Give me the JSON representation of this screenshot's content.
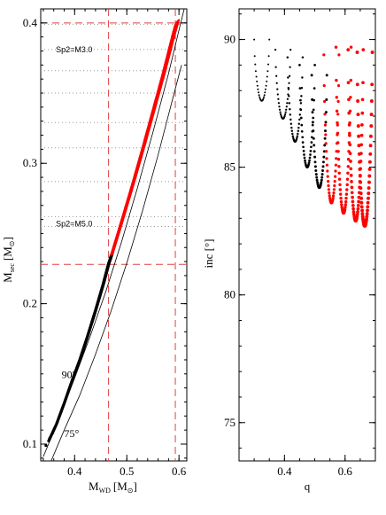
{
  "chart_data": [
    {
      "type": "scatter",
      "panel": "left",
      "xlim": [
        0.335,
        0.615
      ],
      "ylim": [
        0.088,
        0.41
      ],
      "x_ticks": [
        0.4,
        0.5,
        0.6
      ],
      "x_tick_labels": [
        "0.4",
        "0.5",
        "0.6"
      ],
      "y_ticks": [
        0.1,
        0.2,
        0.3,
        0.4
      ],
      "y_tick_labels": [
        "0.1",
        "0.2",
        "0.3",
        "0.4"
      ],
      "xlabel": {
        "main": "M",
        "sub": "WD",
        "unit": "[M",
        "sun": "⊙",
        "close": "]"
      },
      "ylabel": {
        "main": "M",
        "sub": "sec",
        "unit": "[M",
        "sun": "⊙",
        "close": "]"
      },
      "vlines_dashed": [
        0.465,
        0.593
      ],
      "hlines_dashed": [
        0.228,
        0.4
      ],
      "hlines_dotted": [
        0.399,
        0.381,
        0.366,
        0.35,
        0.329,
        0.311,
        0.287,
        0.262,
        0.255
      ],
      "annotations": [
        {
          "text": "Sp2=M3.0",
          "x": 0.364,
          "y": 0.381
        },
        {
          "text": "Sp2=M5.0",
          "x": 0.364,
          "y": 0.257
        },
        {
          "text": "90°",
          "x": 0.375,
          "y": 0.149
        },
        {
          "text": "75°",
          "x": 0.38,
          "y": 0.107
        }
      ],
      "series": [
        {
          "color": "#000000",
          "points": [
            [
              0.35,
              0.102
            ],
            [
              0.365,
              0.114
            ],
            [
              0.38,
              0.129
            ],
            [
              0.395,
              0.145
            ],
            [
              0.41,
              0.16
            ],
            [
              0.425,
              0.177
            ],
            [
              0.44,
              0.195
            ],
            [
              0.455,
              0.214
            ],
            [
              0.465,
              0.228
            ],
            [
              0.472,
              0.236
            ]
          ]
        },
        {
          "color": "#ff0000",
          "points": [
            [
              0.472,
              0.236
            ],
            [
              0.49,
              0.258
            ],
            [
              0.51,
              0.283
            ],
            [
              0.53,
              0.309
            ],
            [
              0.55,
              0.336
            ],
            [
              0.57,
              0.363
            ],
            [
              0.59,
              0.392
            ],
            [
              0.596,
              0.4
            ]
          ]
        }
      ],
      "curves": [
        {
          "name": "90°",
          "color": "#000000",
          "points": [
            [
              0.34,
              0.091
            ],
            [
              0.37,
              0.118
            ],
            [
              0.4,
              0.147
            ],
            [
              0.43,
              0.177
            ],
            [
              0.46,
              0.209
            ],
            [
              0.49,
              0.244
            ],
            [
              0.52,
              0.282
            ],
            [
              0.55,
              0.322
            ],
            [
              0.58,
              0.364
            ],
            [
              0.6,
              0.395
            ],
            [
              0.61,
              0.41
            ]
          ]
        },
        {
          "name": "75°",
          "color": "#000000",
          "points": [
            [
              0.355,
              0.088
            ],
            [
              0.38,
              0.11
            ],
            [
              0.41,
              0.135
            ],
            [
              0.44,
              0.164
            ],
            [
              0.47,
              0.195
            ],
            [
              0.5,
              0.229
            ],
            [
              0.53,
              0.266
            ],
            [
              0.56,
              0.306
            ],
            [
              0.59,
              0.349
            ],
            [
              0.605,
              0.37
            ]
          ]
        }
      ]
    },
    {
      "type": "scatter",
      "panel": "right",
      "xlim": [
        0.25,
        0.7
      ],
      "ylim": [
        73.5,
        91.2
      ],
      "x_ticks": [
        0.4,
        0.6
      ],
      "x_tick_labels": [
        "0.4",
        "0.6"
      ],
      "y_ticks": [
        75,
        80,
        85,
        90
      ],
      "y_tick_labels": [
        "75",
        "80",
        "85",
        "90"
      ],
      "xlabel": {
        "main": "q"
      },
      "ylabel": {
        "main": "inc [°]"
      },
      "arcs": [
        {
          "q_start": 0.3,
          "top": 90.0,
          "bottom": 87.6,
          "color": "#000000"
        },
        {
          "q_start": 0.37,
          "top": 89.6,
          "bottom": 86.9,
          "color": "#000000"
        },
        {
          "q_start": 0.41,
          "top": 89.3,
          "bottom": 86.0,
          "color": "#000000"
        },
        {
          "q_start": 0.45,
          "top": 89.0,
          "bottom": 85.0,
          "color": "#000000"
        },
        {
          "q_start": 0.49,
          "top": 88.6,
          "bottom": 84.2,
          "color": "#000000"
        },
        {
          "q_start": 0.53,
          "top": 89.4,
          "bottom": 83.6,
          "color": "#ff0000"
        },
        {
          "q_start": 0.57,
          "top": 89.7,
          "bottom": 83.2,
          "color": "#ff0000"
        },
        {
          "q_start": 0.61,
          "top": 89.6,
          "bottom": 82.9,
          "color": "#ff0000"
        },
        {
          "q_start": 0.64,
          "top": 89.5,
          "bottom": 82.7,
          "color": "#ff0000"
        }
      ]
    }
  ]
}
